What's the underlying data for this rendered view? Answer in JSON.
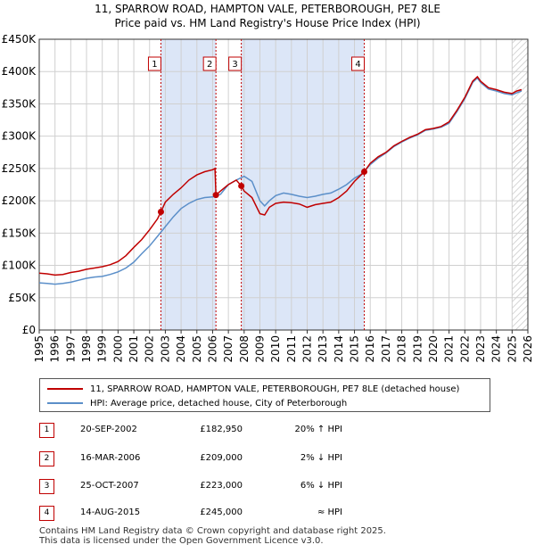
{
  "title_line1": "11, SPARROW ROAD, HAMPTON VALE, PETERBOROUGH, PE7 8LE",
  "title_line2": "Price paid vs. HM Land Registry's House Price Index (HPI)",
  "colors": {
    "property": "#c00000",
    "hpi": "#5b8fc9",
    "shade": "#dce6f7",
    "grid": "#d0d0d0"
  },
  "chart_data": {
    "type": "line",
    "title": "Price paid vs. HM Land Registry's House Price Index (HPI)",
    "xlabel": "",
    "ylabel": "",
    "xlim": [
      1995,
      2026
    ],
    "ylim": [
      0,
      450000
    ],
    "y_ticks": [
      0,
      50000,
      100000,
      150000,
      200000,
      250000,
      300000,
      350000,
      400000,
      450000
    ],
    "y_tick_labels": [
      "£0",
      "£50K",
      "£100K",
      "£150K",
      "£200K",
      "£250K",
      "£300K",
      "£350K",
      "£400K",
      "£450K"
    ],
    "x_ticks": [
      1995,
      1996,
      1997,
      1998,
      1999,
      2000,
      2001,
      2002,
      2003,
      2004,
      2005,
      2006,
      2007,
      2008,
      2009,
      2010,
      2011,
      2012,
      2013,
      2014,
      2015,
      2016,
      2017,
      2018,
      2019,
      2020,
      2021,
      2022,
      2023,
      2024,
      2025,
      2026
    ],
    "x_tick_labels": [
      "1995",
      "1996",
      "1997",
      "1998",
      "1999",
      "2000",
      "2001",
      "2002",
      "2003",
      "2004",
      "2005",
      "2006",
      "2007",
      "2008",
      "2009",
      "2010",
      "2011",
      "2012",
      "2013",
      "2014",
      "2015",
      "2016",
      "2017",
      "2018",
      "2019",
      "2020",
      "2021",
      "2022",
      "2023",
      "2024",
      "2025",
      "2026"
    ],
    "shaded_regions": [
      [
        2002.72,
        2006.21
      ],
      [
        2007.82,
        2015.62
      ]
    ],
    "hatched_region": [
      2025.0,
      2026
    ],
    "series": [
      {
        "name": "11, SPARROW ROAD, HAMPTON VALE, PETERBOROUGH, PE7 8LE (detached house)",
        "color": "#c00000",
        "x": [
          1995.0,
          1995.5,
          1996.0,
          1996.5,
          1997.0,
          1997.5,
          1998.0,
          1998.5,
          1999.0,
          1999.5,
          2000.0,
          2000.5,
          2001.0,
          2001.5,
          2002.0,
          2002.5,
          2002.72,
          2003.0,
          2003.5,
          2004.0,
          2004.5,
          2005.0,
          2005.5,
          2006.0,
          2006.15,
          2006.21,
          2006.5,
          2007.0,
          2007.5,
          2007.82,
          2008.0,
          2008.5,
          2009.0,
          2009.3,
          2009.6,
          2010.0,
          2010.5,
          2011.0,
          2011.5,
          2012.0,
          2012.5,
          2013.0,
          2013.5,
          2014.0,
          2014.5,
          2015.0,
          2015.5,
          2015.62,
          2016.0,
          2016.5,
          2017.0,
          2017.5,
          2018.0,
          2018.5,
          2019.0,
          2019.5,
          2020.0,
          2020.5,
          2021.0,
          2021.5,
          2022.0,
          2022.5,
          2022.8,
          2023.0,
          2023.5,
          2024.0,
          2024.5,
          2025.0,
          2025.3,
          2025.6
        ],
        "values": [
          88000,
          87000,
          85000,
          86000,
          89000,
          91000,
          94000,
          96000,
          98000,
          101000,
          106000,
          115000,
          128000,
          140000,
          155000,
          172000,
          182950,
          198000,
          210000,
          220000,
          232000,
          240000,
          245000,
          248000,
          250000,
          209000,
          215000,
          225000,
          232000,
          223000,
          215000,
          205000,
          180000,
          178000,
          190000,
          196000,
          198000,
          197000,
          195000,
          190000,
          194000,
          196000,
          198000,
          205000,
          215000,
          230000,
          242000,
          245000,
          258000,
          268000,
          275000,
          285000,
          292000,
          298000,
          303000,
          310000,
          312000,
          315000,
          322000,
          340000,
          360000,
          385000,
          392000,
          385000,
          375000,
          372000,
          368000,
          366000,
          370000,
          372000
        ],
        "points": [
          [
            2002.72,
            182950
          ],
          [
            2006.21,
            209000
          ],
          [
            2007.82,
            223000
          ],
          [
            2015.62,
            245000
          ]
        ]
      },
      {
        "name": "HPI: Average price, detached house, City of Peterborough",
        "color": "#5b8fc9",
        "x": [
          1995.0,
          1995.5,
          1996.0,
          1996.5,
          1997.0,
          1997.5,
          1998.0,
          1998.5,
          1999.0,
          1999.5,
          2000.0,
          2000.5,
          2001.0,
          2001.5,
          2002.0,
          2002.5,
          2003.0,
          2003.5,
          2004.0,
          2004.5,
          2005.0,
          2005.5,
          2006.0,
          2006.5,
          2007.0,
          2007.5,
          2008.0,
          2008.5,
          2009.0,
          2009.3,
          2009.6,
          2010.0,
          2010.5,
          2011.0,
          2011.5,
          2012.0,
          2012.5,
          2013.0,
          2013.5,
          2014.0,
          2014.5,
          2015.0,
          2015.5,
          2016.0,
          2016.5,
          2017.0,
          2017.5,
          2018.0,
          2018.5,
          2019.0,
          2019.5,
          2020.0,
          2020.5,
          2021.0,
          2021.5,
          2022.0,
          2022.5,
          2022.8,
          2023.0,
          2023.5,
          2024.0,
          2024.5,
          2025.0,
          2025.3,
          2025.6
        ],
        "values": [
          73000,
          72000,
          71000,
          72000,
          74000,
          77000,
          80000,
          82000,
          83000,
          86000,
          90000,
          96000,
          105000,
          118000,
          130000,
          145000,
          160000,
          175000,
          188000,
          196000,
          202000,
          205000,
          206000,
          210000,
          225000,
          232000,
          238000,
          230000,
          200000,
          192000,
          200000,
          208000,
          212000,
          210000,
          207000,
          205000,
          207000,
          210000,
          212000,
          218000,
          225000,
          235000,
          242000,
          256000,
          266000,
          274000,
          284000,
          291000,
          297000,
          302000,
          309000,
          311000,
          314000,
          320000,
          338000,
          358000,
          383000,
          390000,
          383000,
          373000,
          370000,
          366000,
          364000,
          367000,
          370000
        ]
      }
    ],
    "annotations": [
      {
        "label": "1",
        "x": 2002.72
      },
      {
        "label": "2",
        "x": 2006.21
      },
      {
        "label": "3",
        "x": 2007.82
      },
      {
        "label": "4",
        "x": 2015.62
      }
    ]
  },
  "legend": {
    "property_label": "11, SPARROW ROAD, HAMPTON VALE, PETERBOROUGH, PE7 8LE (detached house)",
    "hpi_label": "HPI: Average price, detached house, City of Peterborough"
  },
  "transactions": [
    {
      "num": "1",
      "date": "20-SEP-2002",
      "price": "£182,950",
      "hpi": "20% ↑ HPI"
    },
    {
      "num": "2",
      "date": "16-MAR-2006",
      "price": "£209,000",
      "hpi": "2% ↓ HPI"
    },
    {
      "num": "3",
      "date": "25-OCT-2007",
      "price": "£223,000",
      "hpi": "6% ↓ HPI"
    },
    {
      "num": "4",
      "date": "14-AUG-2015",
      "price": "£245,000",
      "hpi": "≈ HPI"
    }
  ],
  "footer_line1": "Contains HM Land Registry data © Crown copyright and database right 2025.",
  "footer_line2": "This data is licensed under the Open Government Licence v3.0."
}
